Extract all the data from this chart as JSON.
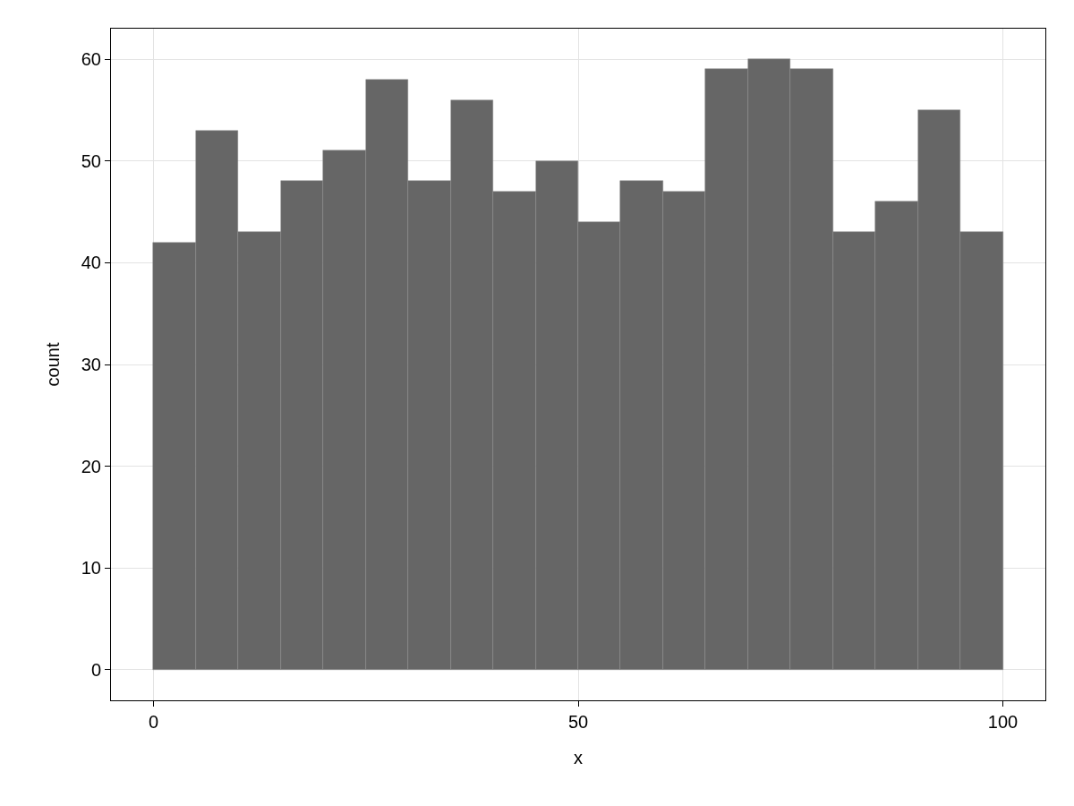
{
  "chart_data": {
    "type": "histogram",
    "xlabel": "x",
    "ylabel": "count",
    "color": "#666666",
    "bins": [
      0,
      5,
      10,
      15,
      20,
      25,
      30,
      35,
      40,
      45,
      50,
      55,
      60,
      65,
      70,
      75,
      80,
      85,
      90,
      95,
      100
    ],
    "values": [
      42,
      53,
      43,
      48,
      51,
      58,
      48,
      56,
      47,
      50,
      44,
      48,
      47,
      59,
      60,
      59,
      43,
      46,
      55,
      43
    ],
    "xlim": [
      -5,
      105
    ],
    "xticks": [
      0,
      50,
      100
    ],
    "ylim": [
      -3,
      63
    ],
    "yticks": [
      0,
      10,
      20,
      30,
      40,
      50,
      60
    ],
    "grid": true
  }
}
